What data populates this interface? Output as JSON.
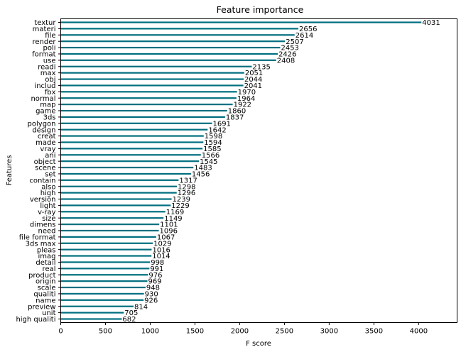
{
  "chart_data": {
    "type": "bar",
    "orientation": "horizontal",
    "title": "Feature importance",
    "xlabel": "F score",
    "ylabel": "Features",
    "xlim": [
      0,
      4430
    ],
    "xticks": [
      0,
      500,
      1000,
      1500,
      2000,
      2500,
      3000,
      3500,
      4000
    ],
    "grid": false,
    "bar_color": "#006f7f",
    "categories": [
      "textur",
      "materi",
      "file",
      "render",
      "poli",
      "format",
      "use",
      "readi",
      "max",
      "obj",
      "includ",
      "fbx",
      "normal",
      "map",
      "game",
      "3ds",
      "polygon",
      "design",
      "creat",
      "made",
      "vray",
      "ani",
      "object",
      "scene",
      "set",
      "contain",
      "also",
      "high",
      "version",
      "light",
      "v-ray",
      "size",
      "dimens",
      "need",
      "file format",
      "3ds max",
      "pleas",
      "imag",
      "detail",
      "real",
      "product",
      "origin",
      "scale",
      "qualiti",
      "name",
      "preview",
      "unit",
      "high qualiti"
    ],
    "values": [
      4031,
      2656,
      2614,
      2507,
      2453,
      2426,
      2408,
      2135,
      2051,
      2044,
      2041,
      1970,
      1964,
      1922,
      1860,
      1837,
      1691,
      1642,
      1598,
      1594,
      1585,
      1566,
      1545,
      1483,
      1456,
      1317,
      1298,
      1296,
      1239,
      1229,
      1169,
      1149,
      1101,
      1096,
      1067,
      1029,
      1016,
      1014,
      998,
      991,
      976,
      969,
      948,
      930,
      926,
      814,
      705,
      682
    ]
  }
}
